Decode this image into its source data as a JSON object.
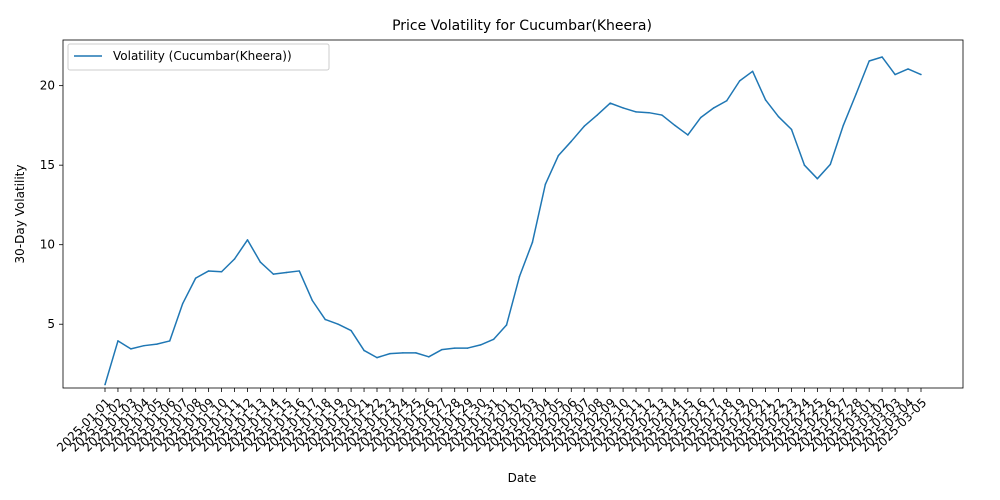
{
  "chart_data": {
    "type": "line",
    "title": "Price Volatility for Cucumbar(Kheera)",
    "xlabel": "Date",
    "ylabel": "30-Day Volatility",
    "ylim": [
      0.99,
      22.87
    ],
    "yticks": [
      5,
      10,
      15,
      20
    ],
    "legend": {
      "position": "upper-left",
      "entries": [
        "Volatility (Cucumbar(Kheera))"
      ]
    },
    "line_color": "#1f77b4",
    "x": [
      "2025-01-01",
      "2025-01-02",
      "2025-01-03",
      "2025-01-04",
      "2025-01-05",
      "2025-01-06",
      "2025-01-07",
      "2025-01-08",
      "2025-01-09",
      "2025-01-10",
      "2025-01-11",
      "2025-01-12",
      "2025-01-13",
      "2025-01-14",
      "2025-01-15",
      "2025-01-16",
      "2025-01-17",
      "2025-01-18",
      "2025-01-19",
      "2025-01-20",
      "2025-01-21",
      "2025-01-22",
      "2025-01-23",
      "2025-01-24",
      "2025-01-25",
      "2025-01-26",
      "2025-01-27",
      "2025-01-28",
      "2025-01-29",
      "2025-01-30",
      "2025-01-31",
      "2025-02-01",
      "2025-02-02",
      "2025-02-03",
      "2025-02-04",
      "2025-02-05",
      "2025-02-06",
      "2025-02-07",
      "2025-02-08",
      "2025-02-09",
      "2025-02-10",
      "2025-02-11",
      "2025-02-12",
      "2025-02-13",
      "2025-02-14",
      "2025-02-15",
      "2025-02-16",
      "2025-02-17",
      "2025-02-18",
      "2025-02-19",
      "2025-02-20",
      "2025-02-21",
      "2025-02-22",
      "2025-02-23",
      "2025-02-24",
      "2025-02-25",
      "2025-02-26",
      "2025-02-27",
      "2025-02-28",
      "2025-03-01",
      "2025-03-02",
      "2025-03-03",
      "2025-03-04",
      "2025-03-05"
    ],
    "series": [
      {
        "name": "Volatility (Cucumbar(Kheera))",
        "values": [
          1.2,
          3.95,
          3.45,
          3.65,
          3.75,
          3.95,
          6.3,
          7.9,
          8.35,
          8.3,
          9.1,
          10.3,
          8.9,
          8.15,
          8.25,
          8.35,
          6.5,
          5.3,
          5.0,
          4.6,
          3.35,
          2.9,
          3.15,
          3.2,
          3.2,
          2.95,
          3.4,
          3.5,
          3.5,
          3.7,
          4.05,
          4.95,
          8.0,
          10.15,
          13.8,
          15.6,
          16.5,
          17.45,
          18.15,
          18.9,
          18.6,
          18.35,
          18.3,
          18.15,
          17.5,
          16.9,
          18.0,
          18.6,
          19.05,
          20.3,
          20.9,
          19.1,
          18.05,
          17.25,
          15.0,
          14.15,
          15.05,
          17.5,
          19.5,
          21.55,
          21.8,
          20.7,
          21.05,
          20.7
        ]
      }
    ]
  }
}
